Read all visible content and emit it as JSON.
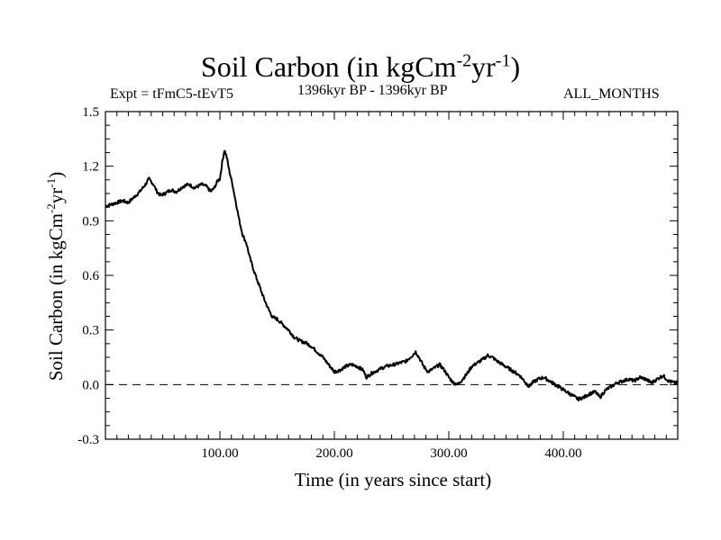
{
  "header": {
    "title_main": "Soil Carbon (in kgCm",
    "title_exp1": "-2",
    "title_mid": "yr",
    "title_exp2": "-1",
    "title_end": ")",
    "experiment": "Expt = tFmC5-tEvT5",
    "period": "1396kyr BP - 1396kyr BP",
    "months": "ALL_MONTHS"
  },
  "axes": {
    "xlabel": "Time (in years since start)",
    "ylabel_main": "Soil Carbon (in kgCm",
    "ylabel_exp1": "-2",
    "ylabel_mid": "yr",
    "ylabel_exp2": "-1",
    "ylabel_end": ")"
  },
  "chart_data": {
    "type": "line",
    "title": "Soil Carbon (in kgCm-2yr-1)",
    "xlabel": "Time (in years since start)",
    "ylabel": "Soil Carbon (in kgCm-2yr-1)",
    "xlim": [
      0,
      500
    ],
    "ylim": [
      -0.3,
      1.5
    ],
    "x_ticks": [
      100,
      200,
      300,
      400
    ],
    "x_tick_labels": [
      "100.00",
      "200.00",
      "300.00",
      "400.00"
    ],
    "y_ticks": [
      -0.3,
      0.0,
      0.3,
      0.6,
      0.9,
      1.2,
      1.5
    ],
    "y_tick_labels": [
      "-0.3",
      "0.0",
      "0.3",
      "0.6",
      "0.9",
      "1.2",
      "1.5"
    ],
    "reference_line": {
      "y": 0.0,
      "style": "dashed"
    },
    "series": [
      {
        "name": "Soil Carbon",
        "points": [
          [
            0,
            0.98
          ],
          [
            5,
            0.99
          ],
          [
            10,
            1.0
          ],
          [
            15,
            1.01
          ],
          [
            20,
            1.0
          ],
          [
            25,
            1.03
          ],
          [
            30,
            1.06
          ],
          [
            35,
            1.1
          ],
          [
            38,
            1.13
          ],
          [
            42,
            1.1
          ],
          [
            45,
            1.06
          ],
          [
            48,
            1.04
          ],
          [
            52,
            1.05
          ],
          [
            57,
            1.07
          ],
          [
            62,
            1.06
          ],
          [
            68,
            1.09
          ],
          [
            73,
            1.1
          ],
          [
            78,
            1.08
          ],
          [
            84,
            1.1
          ],
          [
            88,
            1.09
          ],
          [
            92,
            1.06
          ],
          [
            95,
            1.08
          ],
          [
            98,
            1.12
          ],
          [
            100,
            1.13
          ],
          [
            102,
            1.22
          ],
          [
            104,
            1.29
          ],
          [
            106,
            1.25
          ],
          [
            108,
            1.18
          ],
          [
            111,
            1.1
          ],
          [
            114,
            1.0
          ],
          [
            117,
            0.9
          ],
          [
            120,
            0.82
          ],
          [
            123,
            0.78
          ],
          [
            126,
            0.7
          ],
          [
            130,
            0.62
          ],
          [
            134,
            0.55
          ],
          [
            138,
            0.48
          ],
          [
            142,
            0.42
          ],
          [
            146,
            0.37
          ],
          [
            150,
            0.36
          ],
          [
            155,
            0.33
          ],
          [
            160,
            0.3
          ],
          [
            165,
            0.26
          ],
          [
            170,
            0.24
          ],
          [
            175,
            0.23
          ],
          [
            180,
            0.21
          ],
          [
            185,
            0.18
          ],
          [
            190,
            0.15
          ],
          [
            195,
            0.11
          ],
          [
            200,
            0.07
          ],
          [
            205,
            0.08
          ],
          [
            210,
            0.1
          ],
          [
            215,
            0.11
          ],
          [
            220,
            0.1
          ],
          [
            225,
            0.08
          ],
          [
            228,
            0.04
          ],
          [
            232,
            0.06
          ],
          [
            238,
            0.08
          ],
          [
            245,
            0.1
          ],
          [
            252,
            0.11
          ],
          [
            258,
            0.12
          ],
          [
            263,
            0.13
          ],
          [
            268,
            0.16
          ],
          [
            271,
            0.18
          ],
          [
            274,
            0.15
          ],
          [
            278,
            0.1
          ],
          [
            282,
            0.07
          ],
          [
            287,
            0.09
          ],
          [
            292,
            0.11
          ],
          [
            296,
            0.08
          ],
          [
            300,
            0.04
          ],
          [
            304,
            0.01
          ],
          [
            308,
            0.0
          ],
          [
            312,
            0.03
          ],
          [
            316,
            0.06
          ],
          [
            320,
            0.1
          ],
          [
            325,
            0.12
          ],
          [
            330,
            0.14
          ],
          [
            334,
            0.16
          ],
          [
            338,
            0.15
          ],
          [
            342,
            0.13
          ],
          [
            347,
            0.11
          ],
          [
            352,
            0.09
          ],
          [
            357,
            0.07
          ],
          [
            362,
            0.05
          ],
          [
            366,
            0.02
          ],
          [
            370,
            -0.01
          ],
          [
            373,
            0.01
          ],
          [
            378,
            0.03
          ],
          [
            383,
            0.04
          ],
          [
            388,
            0.02
          ],
          [
            393,
            0.0
          ],
          [
            398,
            -0.02
          ],
          [
            403,
            -0.04
          ],
          [
            408,
            -0.06
          ],
          [
            413,
            -0.08
          ],
          [
            418,
            -0.07
          ],
          [
            423,
            -0.05
          ],
          [
            428,
            -0.04
          ],
          [
            432,
            -0.07
          ],
          [
            437,
            -0.03
          ],
          [
            442,
            -0.01
          ],
          [
            447,
            0.01
          ],
          [
            452,
            0.02
          ],
          [
            457,
            0.03
          ],
          [
            462,
            0.02
          ],
          [
            467,
            0.04
          ],
          [
            472,
            0.03
          ],
          [
            477,
            0.01
          ],
          [
            482,
            0.03
          ],
          [
            487,
            0.05
          ],
          [
            492,
            0.02
          ],
          [
            497,
            0.01
          ],
          [
            500,
            0.01
          ]
        ]
      }
    ],
    "colors": {
      "line": "#000000",
      "frame": "#000000",
      "background": "#ffffff"
    }
  }
}
